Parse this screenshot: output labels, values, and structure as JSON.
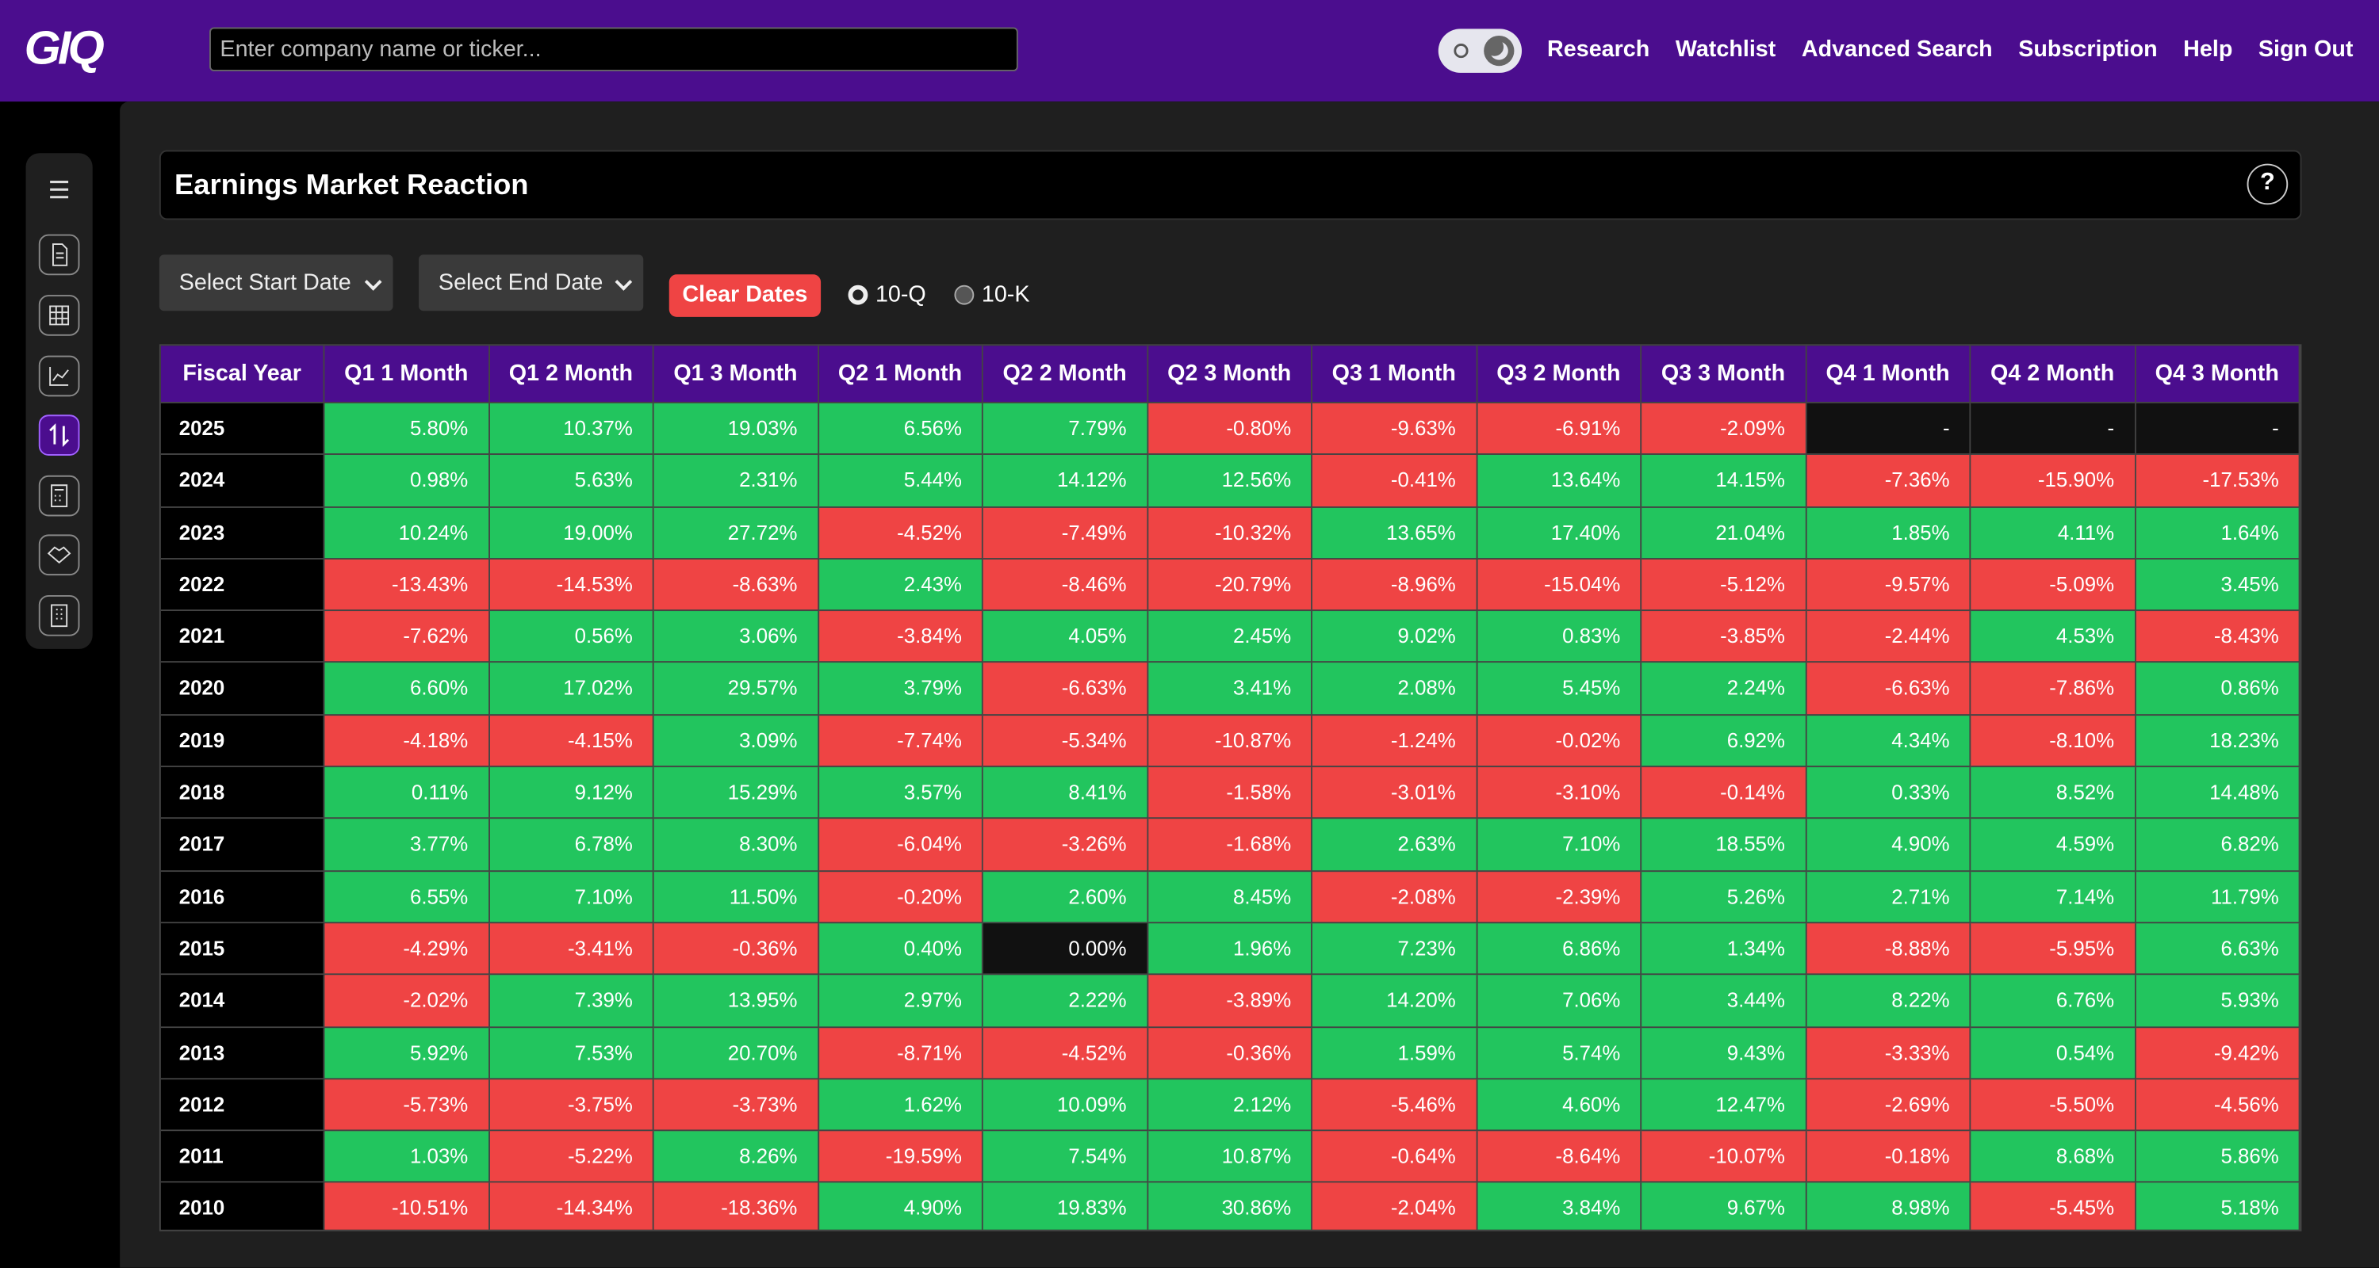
{
  "header": {
    "logo": "GIQ",
    "search_placeholder": "Enter company name or ticker...",
    "nav": [
      "Research",
      "Watchlist",
      "Advanced Search",
      "Subscription",
      "Help",
      "Sign Out"
    ]
  },
  "panel": {
    "title": "Earnings Market Reaction",
    "help": "?",
    "start_date": "Select Start Date",
    "end_date": "Select End Date",
    "clear": "Clear Dates",
    "filters": [
      "10-Q",
      "10-K"
    ]
  },
  "table": {
    "columns": [
      "Fiscal Year",
      "Q1 1 Month",
      "Q1 2 Month",
      "Q1 3 Month",
      "Q2 1 Month",
      "Q2 2 Month",
      "Q2 3 Month",
      "Q3 1 Month",
      "Q3 2 Month",
      "Q3 3 Month",
      "Q4 1 Month",
      "Q4 2 Month",
      "Q4 3 Month"
    ],
    "rows": [
      [
        "2025",
        "5.80%",
        "10.37%",
        "19.03%",
        "6.56%",
        "7.79%",
        "-0.80%",
        "-9.63%",
        "-6.91%",
        "-2.09%",
        "-",
        "-",
        "-"
      ],
      [
        "2024",
        "0.98%",
        "5.63%",
        "2.31%",
        "5.44%",
        "14.12%",
        "12.56%",
        "-0.41%",
        "13.64%",
        "14.15%",
        "-7.36%",
        "-15.90%",
        "-17.53%"
      ],
      [
        "2023",
        "10.24%",
        "19.00%",
        "27.72%",
        "-4.52%",
        "-7.49%",
        "-10.32%",
        "13.65%",
        "17.40%",
        "21.04%",
        "1.85%",
        "4.11%",
        "1.64%"
      ],
      [
        "2022",
        "-13.43%",
        "-14.53%",
        "-8.63%",
        "2.43%",
        "-8.46%",
        "-20.79%",
        "-8.96%",
        "-15.04%",
        "-5.12%",
        "-9.57%",
        "-5.09%",
        "3.45%"
      ],
      [
        "2021",
        "-7.62%",
        "0.56%",
        "3.06%",
        "-3.84%",
        "4.05%",
        "2.45%",
        "9.02%",
        "0.83%",
        "-3.85%",
        "-2.44%",
        "4.53%",
        "-8.43%"
      ],
      [
        "2020",
        "6.60%",
        "17.02%",
        "29.57%",
        "3.79%",
        "-6.63%",
        "3.41%",
        "2.08%",
        "5.45%",
        "2.24%",
        "-6.63%",
        "-7.86%",
        "0.86%"
      ],
      [
        "2019",
        "-4.18%",
        "-4.15%",
        "3.09%",
        "-7.74%",
        "-5.34%",
        "-10.87%",
        "-1.24%",
        "-0.02%",
        "6.92%",
        "4.34%",
        "-8.10%",
        "18.23%"
      ],
      [
        "2018",
        "0.11%",
        "9.12%",
        "15.29%",
        "3.57%",
        "8.41%",
        "-1.58%",
        "-3.01%",
        "-3.10%",
        "-0.14%",
        "0.33%",
        "8.52%",
        "14.48%"
      ],
      [
        "2017",
        "3.77%",
        "6.78%",
        "8.30%",
        "-6.04%",
        "-3.26%",
        "-1.68%",
        "2.63%",
        "7.10%",
        "18.55%",
        "4.90%",
        "4.59%",
        "6.82%"
      ],
      [
        "2016",
        "6.55%",
        "7.10%",
        "11.50%",
        "-0.20%",
        "2.60%",
        "8.45%",
        "-2.08%",
        "-2.39%",
        "5.26%",
        "2.71%",
        "7.14%",
        "11.79%"
      ],
      [
        "2015",
        "-4.29%",
        "-3.41%",
        "-0.36%",
        "0.40%",
        "0.00%",
        "1.96%",
        "7.23%",
        "6.86%",
        "1.34%",
        "-8.88%",
        "-5.95%",
        "6.63%"
      ],
      [
        "2014",
        "-2.02%",
        "7.39%",
        "13.95%",
        "2.97%",
        "2.22%",
        "-3.89%",
        "14.20%",
        "7.06%",
        "3.44%",
        "8.22%",
        "6.76%",
        "5.93%"
      ],
      [
        "2013",
        "5.92%",
        "7.53%",
        "20.70%",
        "-8.71%",
        "-4.52%",
        "-0.36%",
        "1.59%",
        "5.74%",
        "9.43%",
        "-3.33%",
        "0.54%",
        "-9.42%"
      ],
      [
        "2012",
        "-5.73%",
        "-3.75%",
        "-3.73%",
        "1.62%",
        "10.09%",
        "2.12%",
        "-5.46%",
        "4.60%",
        "12.47%",
        "-2.69%",
        "-5.50%",
        "-4.56%"
      ],
      [
        "2011",
        "1.03%",
        "-5.22%",
        "8.26%",
        "-19.59%",
        "7.54%",
        "10.87%",
        "-0.64%",
        "-8.64%",
        "-10.07%",
        "-0.18%",
        "8.68%",
        "5.86%"
      ],
      [
        "2010",
        "-10.51%",
        "-14.34%",
        "-18.36%",
        "4.90%",
        "19.83%",
        "30.86%",
        "-2.04%",
        "3.84%",
        "9.67%",
        "8.98%",
        "-5.45%",
        "5.18%"
      ]
    ]
  }
}
